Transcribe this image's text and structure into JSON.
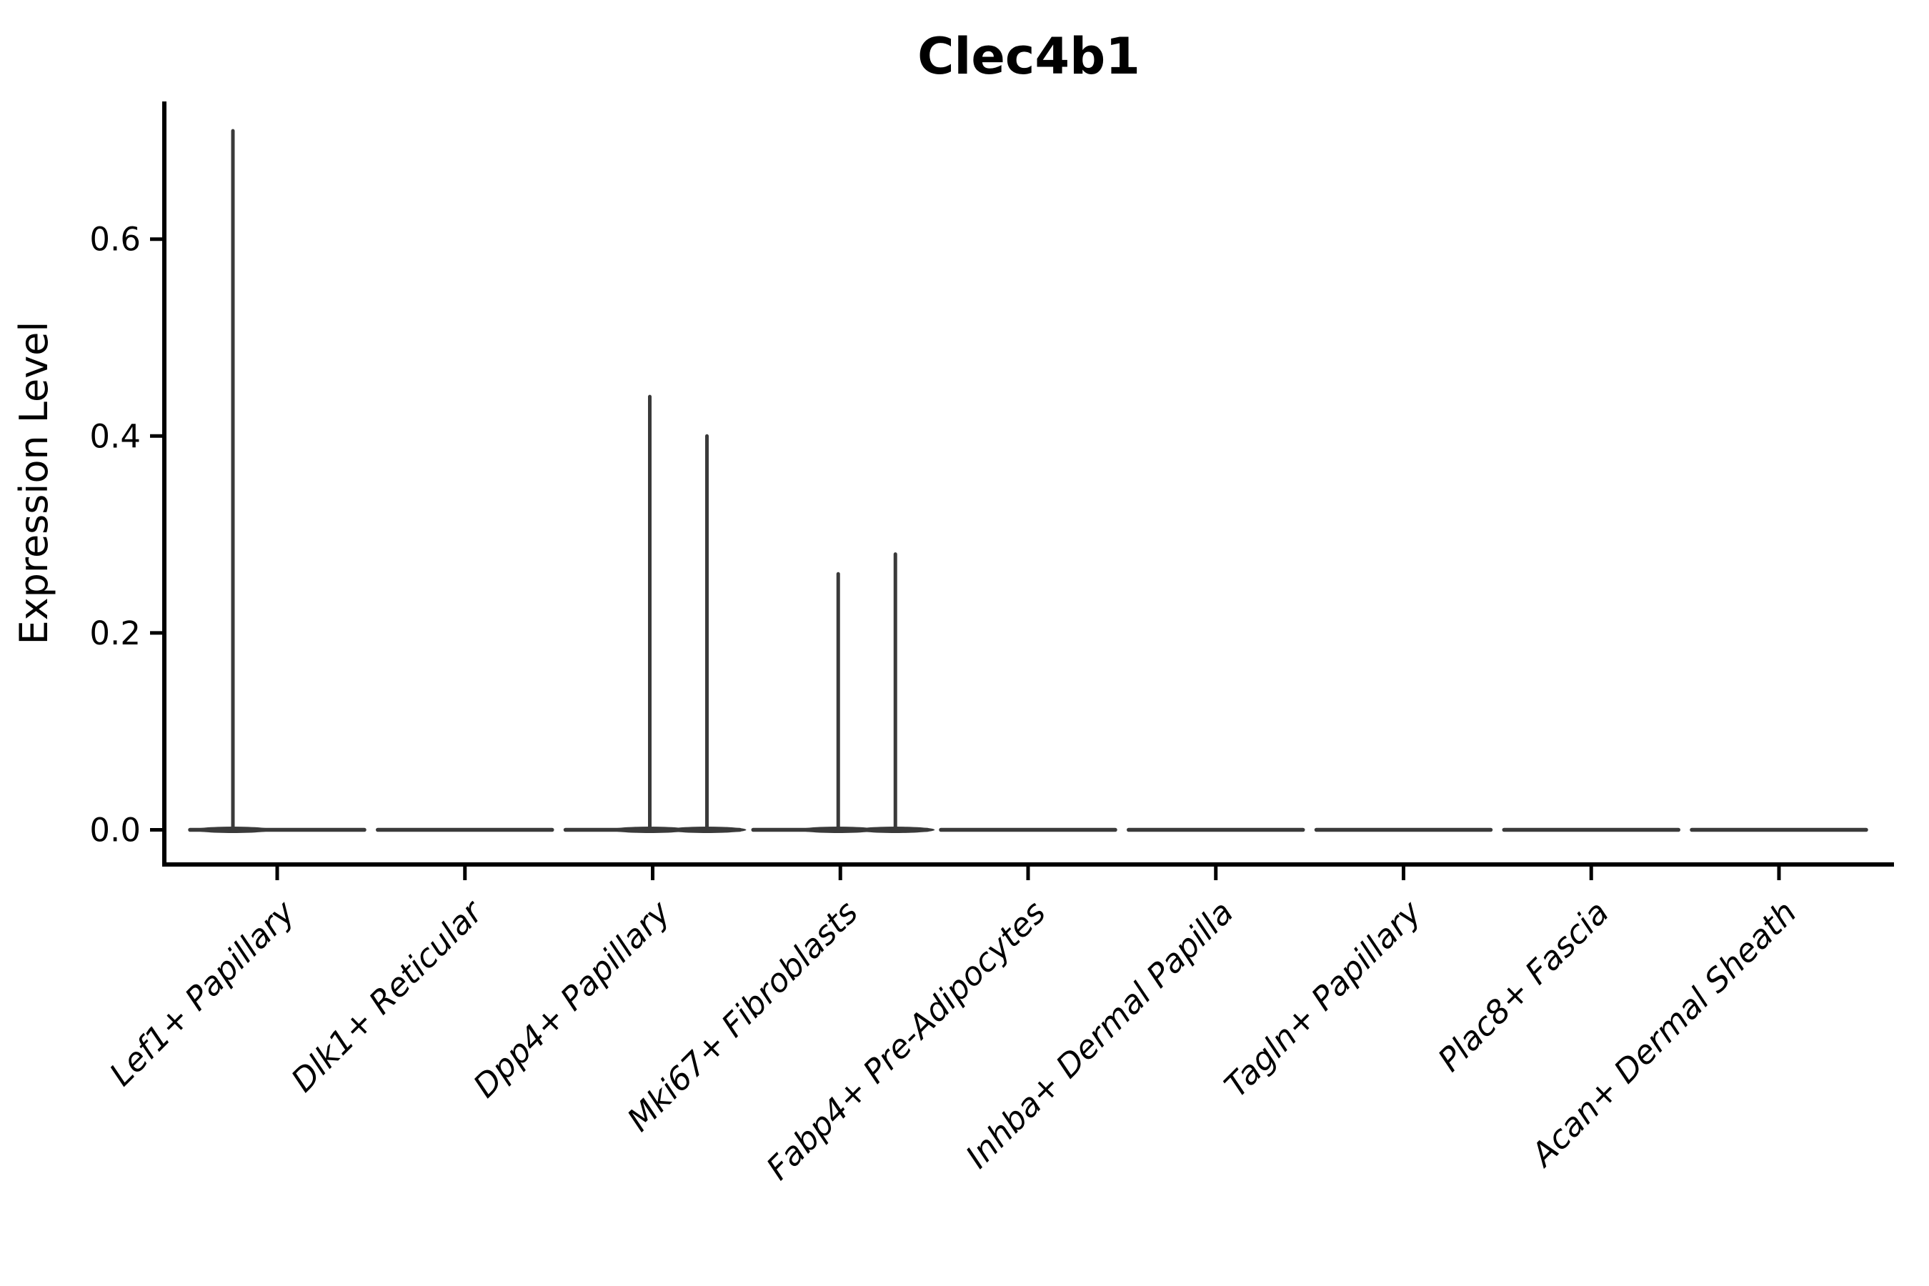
{
  "chart_data": {
    "type": "violin",
    "title": "Clec4b1",
    "ylabel": "Expression Level",
    "xlabel": "",
    "yticks": [
      0.0,
      0.2,
      0.4,
      0.6
    ],
    "ylim": [
      -0.03,
      0.74
    ],
    "grid": false,
    "legend_position": "none",
    "categories": [
      "Lef1+ Papillary",
      "Dlk1+ Reticular",
      "Dpp4+ Papillary",
      "Mki67+ Fibroblasts",
      "Fabp4+ Pre-Adipocytes",
      "Inhba+ Dermal Papilla",
      "Tagln+ Papillary",
      "Plac8+ Fascia",
      "Acan+ Dermal Sheath"
    ],
    "series": [
      {
        "category": "Lef1+ Papillary",
        "baseline_value": 0.0,
        "max_expression": 0.71,
        "spikes": [
          {
            "value": 0.71,
            "offset": -62
          }
        ]
      },
      {
        "category": "Dlk1+ Reticular",
        "baseline_value": 0.0,
        "max_expression": 0.0,
        "spikes": []
      },
      {
        "category": "Dpp4+ Papillary",
        "baseline_value": 0.0,
        "max_expression": 0.44,
        "spikes": [
          {
            "value": 0.44,
            "offset": -4
          },
          {
            "value": 0.4,
            "offset": 76
          }
        ]
      },
      {
        "category": "Mki67+ Fibroblasts",
        "baseline_value": 0.0,
        "max_expression": 0.28,
        "spikes": [
          {
            "value": 0.26,
            "offset": -3
          },
          {
            "value": 0.28,
            "offset": 77
          }
        ]
      },
      {
        "category": "Fabp4+ Pre-Adipocytes",
        "baseline_value": 0.0,
        "max_expression": 0.0,
        "spikes": []
      },
      {
        "category": "Inhba+ Dermal Papilla",
        "baseline_value": 0.0,
        "max_expression": 0.0,
        "spikes": []
      },
      {
        "category": "Tagln+ Papillary",
        "baseline_value": 0.0,
        "max_expression": 0.0,
        "spikes": []
      },
      {
        "category": "Plac8+ Fascia",
        "baseline_value": 0.0,
        "max_expression": 0.0,
        "spikes": []
      },
      {
        "category": "Acan+ Dermal Sheath",
        "baseline_value": 0.0,
        "max_expression": 0.0,
        "spikes": []
      }
    ]
  },
  "colors": {
    "violin_outline": "#3a3a3a",
    "axis": "#000000",
    "text": "#000000",
    "background": "#ffffff"
  }
}
